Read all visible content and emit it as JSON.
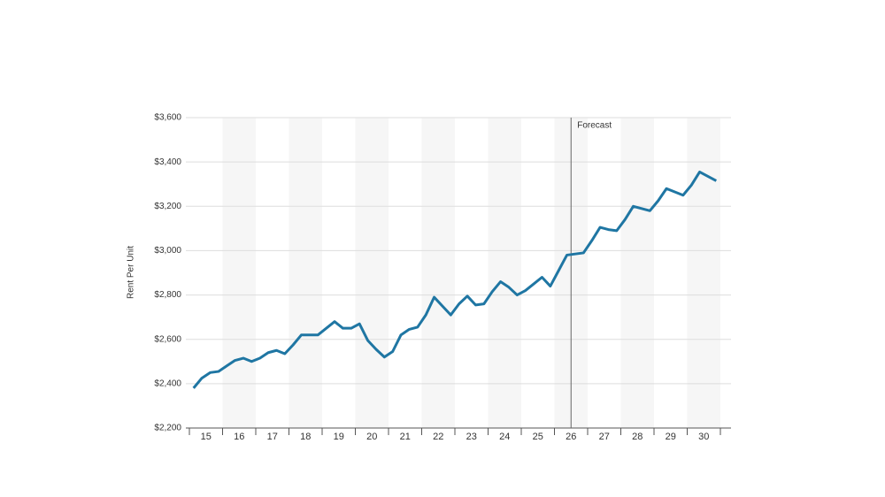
{
  "chart_data": {
    "type": "line",
    "y_axis_label": "Rent Per Unit",
    "x": [
      14.625,
      14.875,
      15.125,
      15.375,
      15.625,
      15.875,
      16.125,
      16.375,
      16.625,
      16.875,
      17.125,
      17.375,
      17.625,
      17.875,
      18.125,
      18.375,
      18.625,
      18.875,
      19.125,
      19.375,
      19.625,
      19.875,
      20.125,
      20.375,
      20.625,
      20.875,
      21.125,
      21.375,
      21.625,
      21.875,
      22.125,
      22.375,
      22.625,
      22.875,
      23.125,
      23.375,
      23.625,
      23.875,
      24.125,
      24.375,
      24.625,
      24.875,
      25.125,
      25.375,
      25.625,
      25.875,
      26.125,
      26.375,
      26.625,
      26.875,
      27.125,
      27.375,
      27.625,
      27.875,
      28.125,
      28.375,
      28.625,
      28.875,
      29.125,
      29.375,
      29.625,
      29.875,
      30.125,
      30.375
    ],
    "series": [
      {
        "color": "#1f76a3",
        "values": [
          2380,
          2425,
          2450,
          2455,
          2480,
          2505,
          2515,
          2500,
          2515,
          2540,
          2550,
          2535,
          2575,
          2620,
          2620,
          2620,
          2650,
          2680,
          2650,
          2650,
          2670,
          2595,
          2555,
          2520,
          2545,
          2620,
          2645,
          2655,
          2710,
          2790,
          2750,
          2710,
          2760,
          2795,
          2755,
          2760,
          2815,
          2860,
          2835,
          2800,
          2820,
          2850,
          2880,
          2840,
          2910,
          2980,
          2985,
          2990,
          3045,
          3105,
          3095,
          3090,
          3140,
          3200,
          3190,
          3180,
          3225,
          3280,
          3265,
          3250,
          3295,
          3355,
          3335,
          3315
        ]
      }
    ],
    "xlim": [
      14.5,
      30.5
    ],
    "xticks": [
      15,
      16,
      17,
      18,
      19,
      20,
      21,
      22,
      23,
      24,
      25,
      26,
      27,
      28,
      29,
      30
    ],
    "ylim": [
      2200,
      3600
    ],
    "yticks": [
      {
        "value": 2200,
        "label": "$2,200"
      },
      {
        "value": 2400,
        "label": "$2,400"
      },
      {
        "value": 2600,
        "label": "$2,600"
      },
      {
        "value": 2800,
        "label": "$2,800"
      },
      {
        "value": 3000,
        "label": "$3,000"
      },
      {
        "value": 3200,
        "label": "$3,200"
      },
      {
        "value": 3400,
        "label": "$3,400"
      },
      {
        "value": 3600,
        "label": "$3,600"
      }
    ],
    "grid": true,
    "annotations": [
      {
        "x": 26,
        "text": "Forecast"
      }
    ]
  }
}
